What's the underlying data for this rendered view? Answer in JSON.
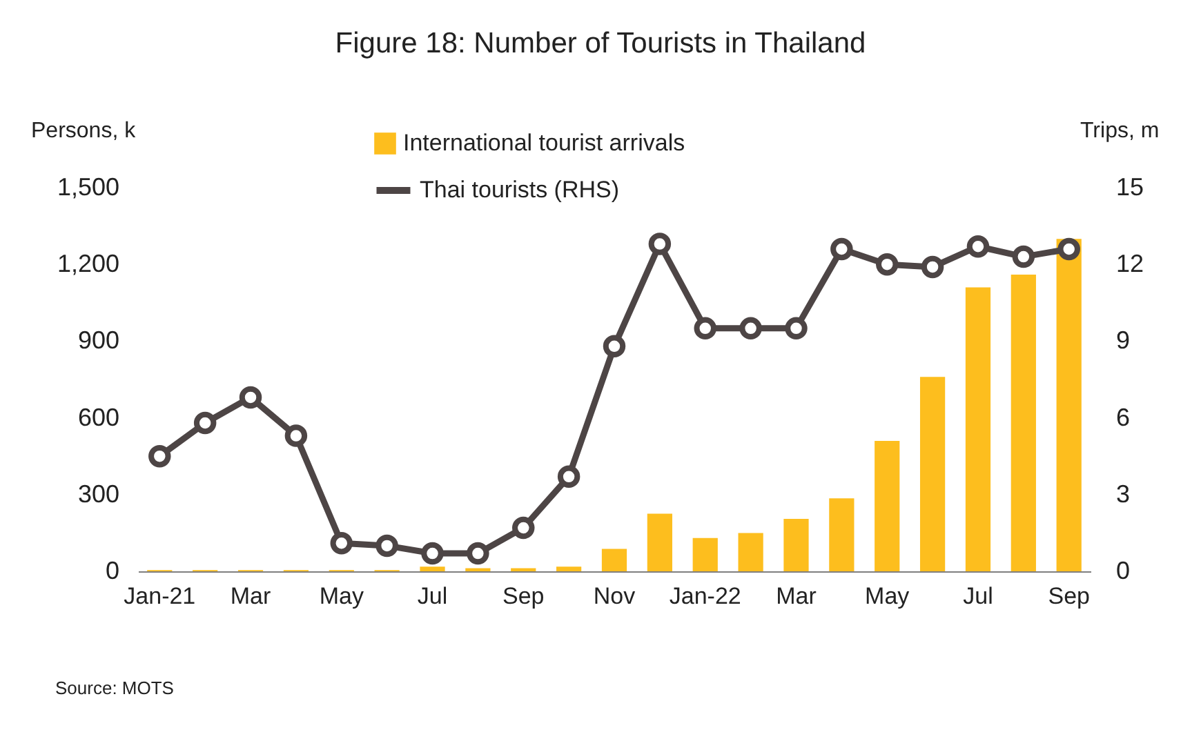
{
  "chart_data": {
    "type": "bar",
    "title": "Figure 18: Number of Tourists in Thailand",
    "ylabel": "Persons, k",
    "y2label": "Trips, m",
    "categories": [
      "Jan-21",
      null,
      "Mar",
      null,
      "May",
      null,
      "Jul",
      null,
      "Sep",
      null,
      "Nov",
      null,
      "Jan-22",
      null,
      "Mar",
      null,
      "May",
      null,
      "Jul",
      null,
      "Sep"
    ],
    "series": [
      {
        "name": "International tourist arrivals",
        "color": "#fdbe1e",
        "values": [
          5,
          5,
          5,
          5,
          5,
          5,
          18,
          12,
          12,
          18,
          88,
          225,
          130,
          150,
          205,
          285,
          510,
          760,
          1110,
          1160,
          1300
        ]
      },
      {
        "name": "Thai tourists (RHS)",
        "type": "line",
        "axis": "y2",
        "color": "#4d4545",
        "values": [
          4.5,
          5.8,
          6.8,
          5.3,
          1.1,
          1.0,
          0.7,
          0.7,
          1.7,
          3.7,
          8.8,
          12.8,
          9.5,
          9.5,
          9.5,
          12.6,
          12.0,
          11.9,
          12.7,
          12.3,
          12.6
        ]
      }
    ],
    "ylim": [
      0,
      1500
    ],
    "yticks": [
      {
        "value": 0,
        "label": "0"
      },
      {
        "value": 300,
        "label": "300"
      },
      {
        "value": 600,
        "label": "600"
      },
      {
        "value": 900,
        "label": "900"
      },
      {
        "value": 1200,
        "label": "1,200"
      },
      {
        "value": 1500,
        "label": "1,500"
      }
    ],
    "y2lim": [
      0,
      15
    ],
    "y2ticks": [
      0,
      3,
      6,
      9,
      12,
      15
    ],
    "marker": "circle",
    "line_style": "solid",
    "legend": "top",
    "annotations": [
      "Source: MOTS"
    ]
  }
}
